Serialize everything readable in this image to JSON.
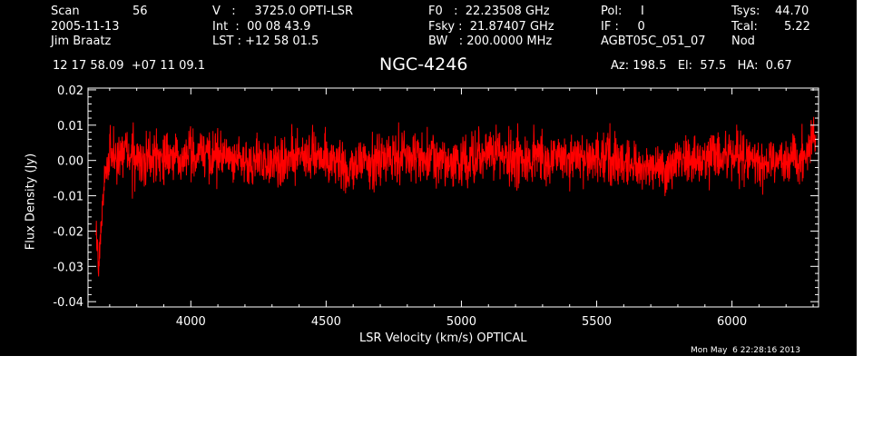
{
  "header": {
    "scan_label": "Scan",
    "scan_value": "56",
    "date": "2005-11-13",
    "observer": "Jim Braatz",
    "ra_dec": "12 17 58.09  +07 11 09.1",
    "velocity": "V   :     3725.0 OPTI-LSR",
    "integration": "Int  :  00 08 43.9",
    "lst": "LST : +12 58 01.5",
    "f0": "F0   :  22.23508 GHz",
    "fsky": "Fsky :  21.87407 GHz",
    "bw": "BW   : 200.0000 MHz",
    "pol": "Pol:     I",
    "if": "IF :     0",
    "project": "AGBT05C_051_07",
    "tsys_label": "Tsys:",
    "tsys_value": "44.70",
    "tcal_label": "Tcal:",
    "tcal_value": "5.22",
    "mode": "Nod",
    "source": "NGC-4246",
    "pointing": "Az: 198.5   El:  57.5   HA:  0.67",
    "timestamp": "Mon May  6 22:28:16 2013"
  },
  "chart_data": {
    "type": "line",
    "xlabel": "LSR Velocity (km/s) OPTICAL",
    "ylabel": "Flux Density (Jy)",
    "xlim": [
      3620,
      6320
    ],
    "ylim": [
      -0.0415,
      0.0205
    ],
    "xticks": [
      {
        "value": 4000,
        "label": "4000"
      },
      {
        "value": 4500,
        "label": "4500"
      },
      {
        "value": 5000,
        "label": "5000"
      },
      {
        "value": 5500,
        "label": "5500"
      },
      {
        "value": 6000,
        "label": "6000"
      }
    ],
    "yticks": [
      {
        "value": 0.02,
        "label": "0.02"
      },
      {
        "value": 0.01,
        "label": "0.01"
      },
      {
        "value": 0.0,
        "label": "0.00"
      },
      {
        "value": -0.01,
        "label": "-0.01"
      },
      {
        "value": -0.02,
        "label": "-0.02"
      },
      {
        "value": -0.03,
        "label": "-0.03"
      },
      {
        "value": -0.04,
        "label": "-0.04"
      }
    ],
    "grid": false,
    "series": [
      {
        "color": "#ff0000",
        "x": [
          3650,
          3660,
          3670,
          3680,
          3700,
          3750,
          3800,
          3900,
          4000,
          4100,
          4200,
          4300,
          4400,
          4500,
          4600,
          4700,
          4800,
          4900,
          5000,
          5100,
          5200,
          5300,
          5400,
          5500,
          5600,
          5700,
          5750,
          5800,
          5900,
          6000,
          6100,
          6200,
          6250,
          6280,
          6300,
          6310
        ],
        "y": [
          -0.02,
          -0.03,
          -0.015,
          -0.005,
          0.0,
          0.0015,
          0.0005,
          0.0,
          0.0015,
          0.0015,
          0.0,
          -0.001,
          0.001,
          0.0,
          -0.002,
          0.0,
          0.0015,
          0.0,
          -0.001,
          0.002,
          0.0,
          0.001,
          0.0,
          0.0015,
          0.0,
          -0.002,
          -0.004,
          0.0,
          0.0,
          0.0015,
          0.0,
          0.0,
          0.0,
          0.003,
          0.008,
          0.004
        ]
      }
    ]
  }
}
